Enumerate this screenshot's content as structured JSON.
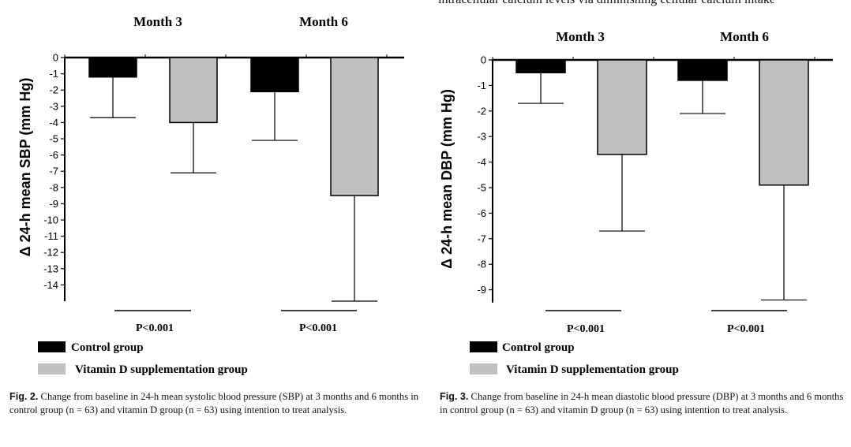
{
  "top_fragment": "intracellular calcium levels via diminishing cellular calcium intake",
  "legend": {
    "control": "Control group",
    "vitd": "Vitamin D supplementation group"
  },
  "colors": {
    "control": "#000000",
    "vitd": "#c0c0c0"
  },
  "figures": [
    {
      "caption_label": "Fig. 2.",
      "caption_text": "Change from baseline in 24-h mean systolic blood pressure (SBP) at 3 months and 6 months in control group (n = 63) and vitamin D group (n = 63) using intention to treat analysis."
    },
    {
      "caption_label": "Fig. 3.",
      "caption_text": "Change from baseline in 24-h mean diastolic blood pressure (DBP) at 3 months and 6 months in control group (n = 63) and vitamin D group (n = 63) using intention to treat analysis."
    }
  ],
  "chart_data": [
    {
      "type": "bar",
      "categories": [
        "Month 3",
        "Month 6"
      ],
      "ylabel": "Δ 24-h mean SBP (mm Hg)",
      "ylim": [
        -15,
        0
      ],
      "yticks": [
        0,
        -1,
        -2,
        -3,
        -4,
        -5,
        -6,
        -7,
        -8,
        -9,
        -10,
        -11,
        -12,
        -13,
        -14
      ],
      "series": [
        {
          "name": "Control group",
          "values": [
            -1.2,
            -2.1
          ],
          "error_low": [
            -3.7,
            -5.1
          ]
        },
        {
          "name": "Vitamin D supplementation group",
          "values": [
            -4.0,
            -8.5
          ],
          "error_low": [
            -7.1,
            -15.0
          ]
        }
      ],
      "pvalues": [
        "P<0.001",
        "P<0.001"
      ]
    },
    {
      "type": "bar",
      "categories": [
        "Month 3",
        "Month 6"
      ],
      "ylabel": "Δ 24-h mean DBP (mm Hg)",
      "ylim": [
        -9.5,
        0
      ],
      "yticks": [
        0,
        -1,
        -2,
        -3,
        -4,
        -5,
        -6,
        -7,
        -8,
        -9
      ],
      "series": [
        {
          "name": "Control group",
          "values": [
            -0.5,
            -0.8
          ],
          "error_low": [
            -1.7,
            -2.1
          ]
        },
        {
          "name": "Vitamin D supplementation group",
          "values": [
            -3.7,
            -4.9
          ],
          "error_low": [
            -6.7,
            -9.4
          ]
        }
      ],
      "pvalues": [
        "P<0.001",
        "P<0.001"
      ]
    }
  ]
}
